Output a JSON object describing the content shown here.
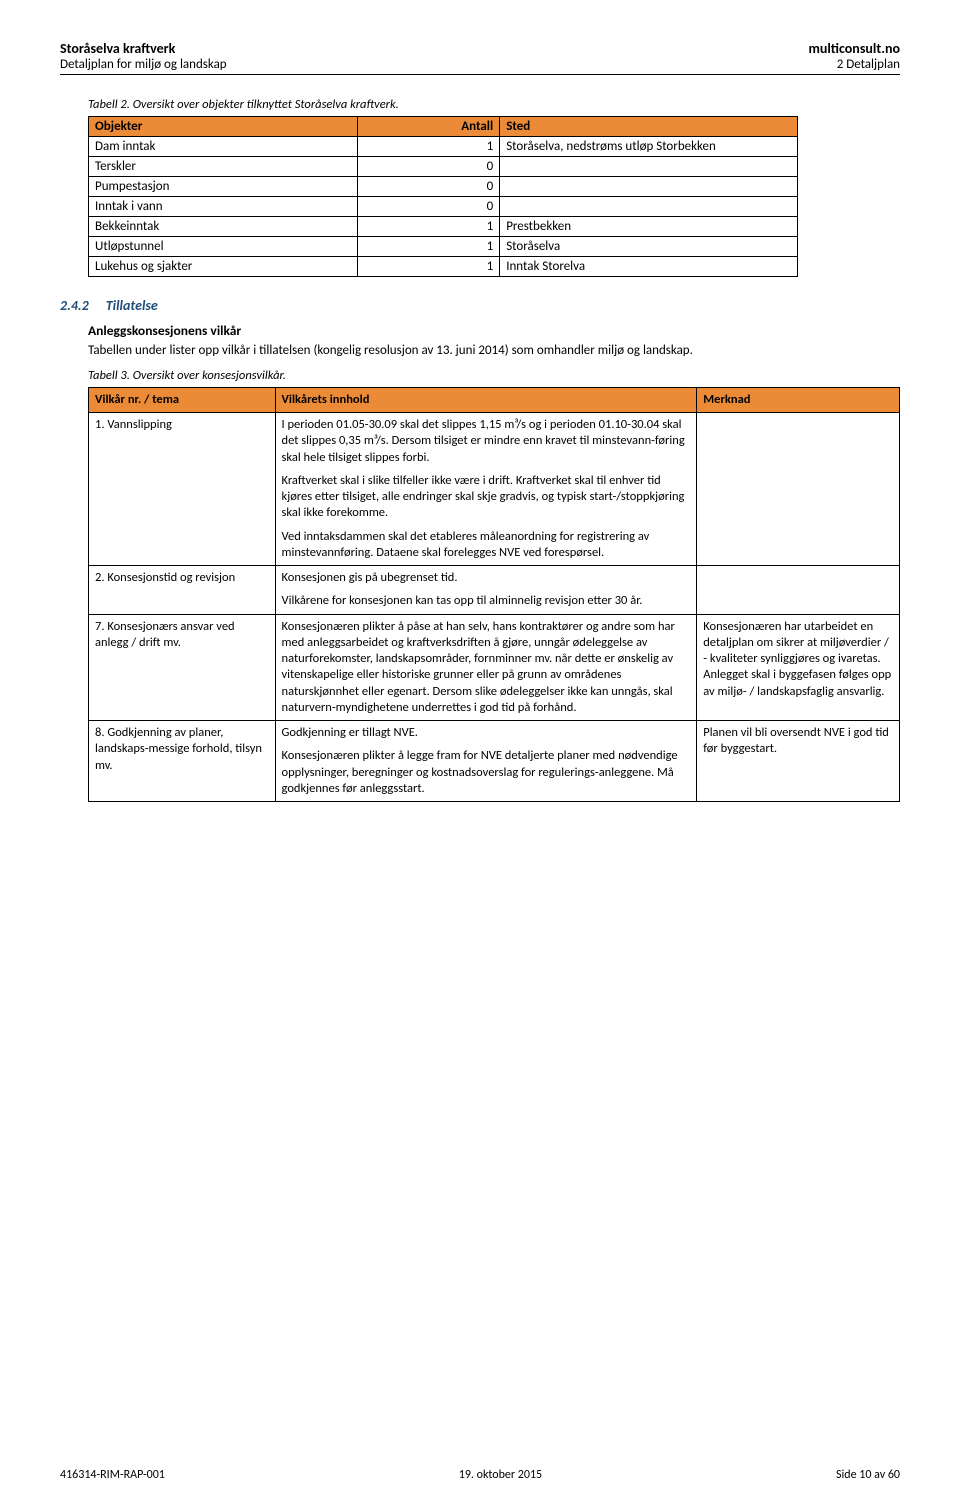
{
  "header": {
    "title_left": "Storåselva kraftverk",
    "sub_left": "Detaljplan for miljø og landskap",
    "title_right": "multiconsult.no",
    "sub_right": "2 Detaljplan"
  },
  "table1": {
    "caption": "Tabell 2. Oversikt over objekter tilknyttet Storåselva kraftverk.",
    "headers": [
      "Objekter",
      "Antall",
      "Sted"
    ],
    "rows": [
      [
        "Dam inntak",
        "1",
        "Storåselva, nedstrøms utløp Storbekken"
      ],
      [
        "Terskler",
        "0",
        ""
      ],
      [
        "Pumpestasjon",
        "0",
        ""
      ],
      [
        "Inntak i vann",
        "0",
        ""
      ],
      [
        "Bekkeinntak",
        "1",
        "Prestbekken"
      ],
      [
        "Utløpstunnel",
        "1",
        "Storåselva"
      ],
      [
        "Lukehus og sjakter",
        "1",
        "Inntak Storelva"
      ]
    ]
  },
  "section": {
    "num": "2.4.2",
    "title": "Tillatelse",
    "subheading": "Anleggskonsesjonens vilkår",
    "body": "Tabellen under lister opp vilkår i tillatelsen (kongelig resolusjon av 13. juni 2014) som omhandler miljø og landskap."
  },
  "table2": {
    "caption": "Tabell 3. Oversikt over konsesjonsvilkår.",
    "headers": [
      "Vilkår nr. / tema",
      "Vilkårets innhold",
      "Merknad"
    ],
    "rows": [
      {
        "c1": "1.   Vannslipping",
        "c2": [
          "I perioden 01.05-30.09 skal det slippes 1,15 m³/s og i perioden 01.10-30.04 skal det slippes 0,35 m³/s. Dersom tilsiget er mindre enn kravet til minstevann-føring skal hele tilsiget slippes forbi.",
          "Kraftverket skal i slike tilfeller ikke være i drift. Kraftverket skal til enhver tid kjøres etter tilsiget, alle endringer skal skje gradvis, og typisk start-/stoppkjøring skal ikke forekomme.",
          "Ved inntaksdammen skal det etableres måleanordning for registrering av minstevannføring. Dataene skal forelegges NVE ved forespørsel."
        ],
        "c3": ""
      },
      {
        "c1": "2.   Konsesjonstid og revisjon",
        "c2": [
          "Konsesjonen gis på ubegrenset tid.",
          "Vilkårene for konsesjonen kan tas opp til alminnelig revisjon etter 30 år."
        ],
        "c3": ""
      },
      {
        "c1": "7. Konsesjonærs ansvar ved anlegg / drift mv.",
        "c2": [
          "Konsesjonæren plikter å påse at han selv, hans kontraktører og andre som har med anleggsarbeidet og kraftverksdriften å gjøre, unngår ødeleggelse av naturforekomster, landskapsområder, fornminner mv. når dette er ønskelig av vitenskapelige eller historiske grunner eller på grunn av områdenes naturskjønnhet eller egenart. Dersom slike ødeleggelser ikke kan unngås, skal naturvern-myndighetene underrettes i god tid på forhånd."
        ],
        "c3": "Konsesjonæren har utarbeidet en detaljplan om sikrer at miljøverdier / - kvaliteter synliggjøres og ivaretas. Anlegget skal i byggefasen følges opp av miljø- / landskapsfaglig ansvarlig."
      },
      {
        "c1": "8. Godkjenning av planer, landskaps-messige forhold, tilsyn mv.",
        "c2": [
          "Godkjenning er tillagt NVE.",
          "Konsesjonæren plikter å legge fram for NVE detaljerte planer med nødvendige opplysninger, beregninger og kostnadsoverslag for regulerings-anleggene. Må godkjennes før anleggsstart."
        ],
        "c3": "Planen vil bli oversendt NVE i god tid før byggestart."
      }
    ]
  },
  "footer": {
    "left": "416314-RIM-RAP-001",
    "center": "19. oktober 2015",
    "right": "Side 10 av 60"
  }
}
